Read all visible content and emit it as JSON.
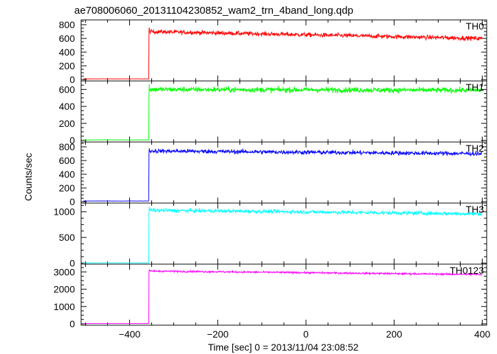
{
  "chart_data": {
    "type": "line",
    "title": "ae708006060_20131104230852_wam2_trn_4band_long.qdp",
    "xlabel": "Time [sec] 0 = 2013/11/04 23:08:52",
    "ylabel": "Counts/sec",
    "xlim": [
      -510,
      410
    ],
    "x_ticks": [
      -400,
      -200,
      0,
      200,
      400
    ],
    "x_tick_labels": [
      "−400",
      "−200",
      "0",
      "200",
      "400"
    ],
    "grid": false,
    "burst_start_x": -357,
    "x_range_data": [
      -505,
      400
    ],
    "panels": [
      {
        "name": "TH0",
        "color": "#ff0000",
        "ylim": [
          -20,
          870
        ],
        "y_ticks": [
          0,
          200,
          400,
          600,
          800
        ],
        "baseline": 10,
        "onset_values": [
          10,
          240,
          720
        ],
        "peak": 760,
        "level_start": 700,
        "level_end": 600,
        "noise": 30
      },
      {
        "name": "TH1",
        "color": "#00ff00",
        "ylim": [
          -20,
          700
        ],
        "y_ticks": [
          0,
          200,
          400,
          600
        ],
        "baseline": 5,
        "onset_values": [
          5,
          150,
          560
        ],
        "peak": 660,
        "level_start": 600,
        "level_end": 590,
        "noise": 30
      },
      {
        "name": "TH2",
        "color": "#0000ff",
        "ylim": [
          -20,
          870
        ],
        "y_ticks": [
          0,
          200,
          400,
          600,
          800
        ],
        "baseline": 10,
        "onset_values": [
          10,
          250,
          700
        ],
        "peak": 780,
        "level_start": 740,
        "level_end": 700,
        "noise": 30
      },
      {
        "name": "TH3",
        "color": "#00ffff",
        "ylim": [
          -20,
          1170
        ],
        "y_ticks": [
          0,
          500,
          1000
        ],
        "baseline": 5,
        "onset_values": [
          5,
          100,
          950
        ],
        "peak": 1100,
        "level_start": 1030,
        "level_end": 960,
        "noise": 35
      },
      {
        "name": "TH0123",
        "color": "#ff00ff",
        "ylim": [
          -80,
          3450
        ],
        "y_ticks": [
          0,
          1000,
          2000,
          3000
        ],
        "baseline": 20,
        "onset_values": [
          20,
          600,
          3000
        ],
        "peak": 3150,
        "level_start": 3050,
        "level_end": 2850,
        "noise": 50
      }
    ]
  }
}
